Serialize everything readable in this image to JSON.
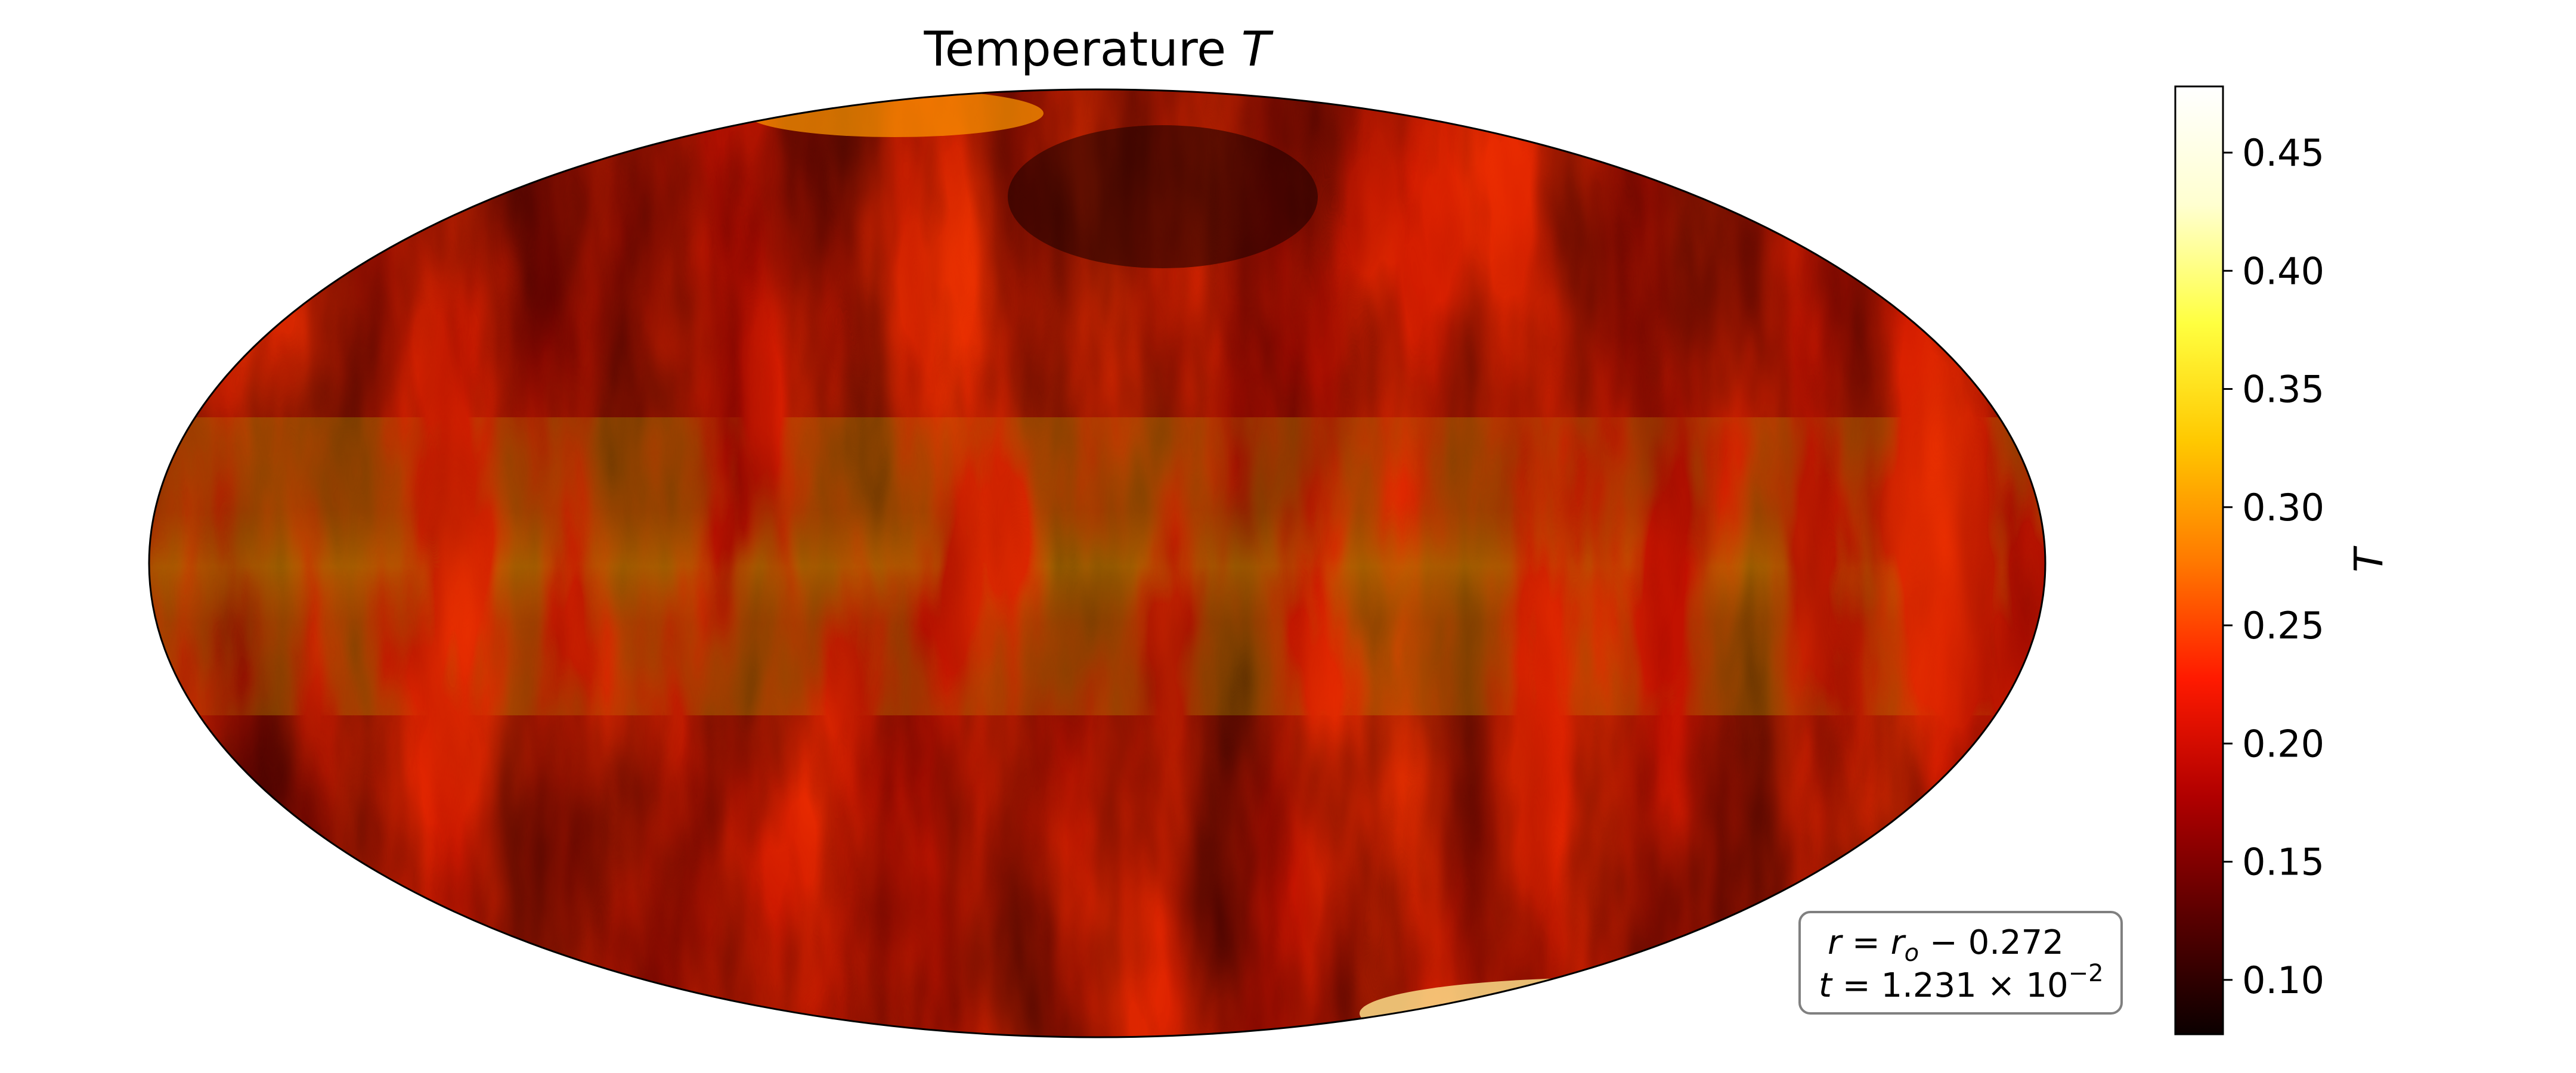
{
  "chart_data": {
    "type": "heatmap",
    "projection": "mollweide",
    "title": "Temperature T",
    "title_parts": [
      "Temperature ",
      "T"
    ],
    "colorbar": {
      "label": "T",
      "colormap": "hot",
      "range": [
        0.077,
        0.478
      ],
      "ticks": [
        0.1,
        0.15,
        0.2,
        0.25,
        0.3,
        0.35,
        0.4,
        0.45
      ],
      "tick_labels": [
        "0.10",
        "0.15",
        "0.20",
        "0.25",
        "0.30",
        "0.35",
        "0.40",
        "0.45"
      ],
      "colors": [
        "#0b0000",
        "#5a0000",
        "#b00000",
        "#ff1a00",
        "#ff7a00",
        "#ffc800",
        "#ffff40",
        "#ffffd0",
        "#ffffff"
      ]
    },
    "annotation": {
      "line1": "r = r_o −  0.272",
      "line2": "t = 1.231 × 10^−2"
    }
  }
}
